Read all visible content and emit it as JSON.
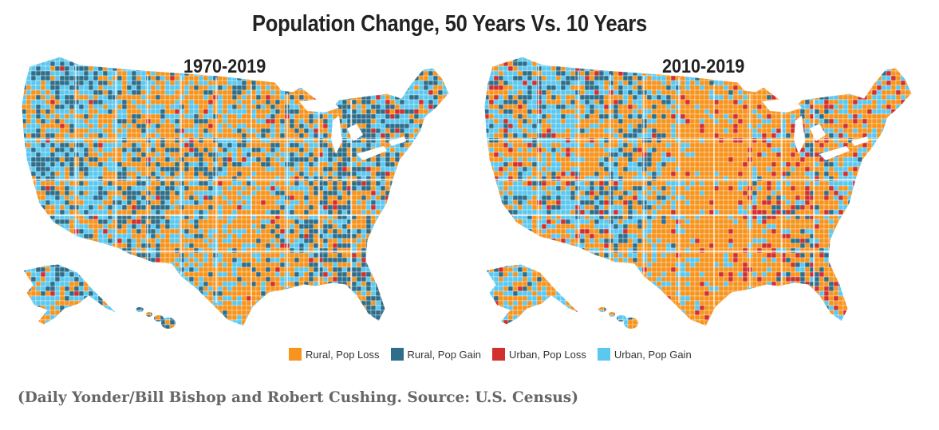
{
  "title": "Population Change, 50 Years Vs. 10 Years",
  "maps": [
    {
      "label": "1970-2019",
      "mix": {
        "rural_loss": 0.4,
        "rural_gain": 0.32,
        "urban_loss": 0.03,
        "urban_gain": 0.25
      }
    },
    {
      "label": "2010-2019",
      "mix": {
        "rural_loss": 0.52,
        "rural_gain": 0.18,
        "urban_loss": 0.08,
        "urban_gain": 0.22
      }
    }
  ],
  "legend": [
    {
      "key": "rural_loss",
      "label": "Rural, Pop Loss",
      "color": "#F7941D"
    },
    {
      "key": "rural_gain",
      "label": "Rural, Pop Gain",
      "color": "#2E6E8A"
    },
    {
      "key": "urban_loss",
      "label": "Urban, Pop Loss",
      "color": "#D32F2F"
    },
    {
      "key": "urban_gain",
      "label": "Urban, Pop Gain",
      "color": "#5BC8F0"
    }
  ],
  "caption": "(Daily Yonder/Bill Bishop and Robert Cushing. Source: U.S. Census)"
}
